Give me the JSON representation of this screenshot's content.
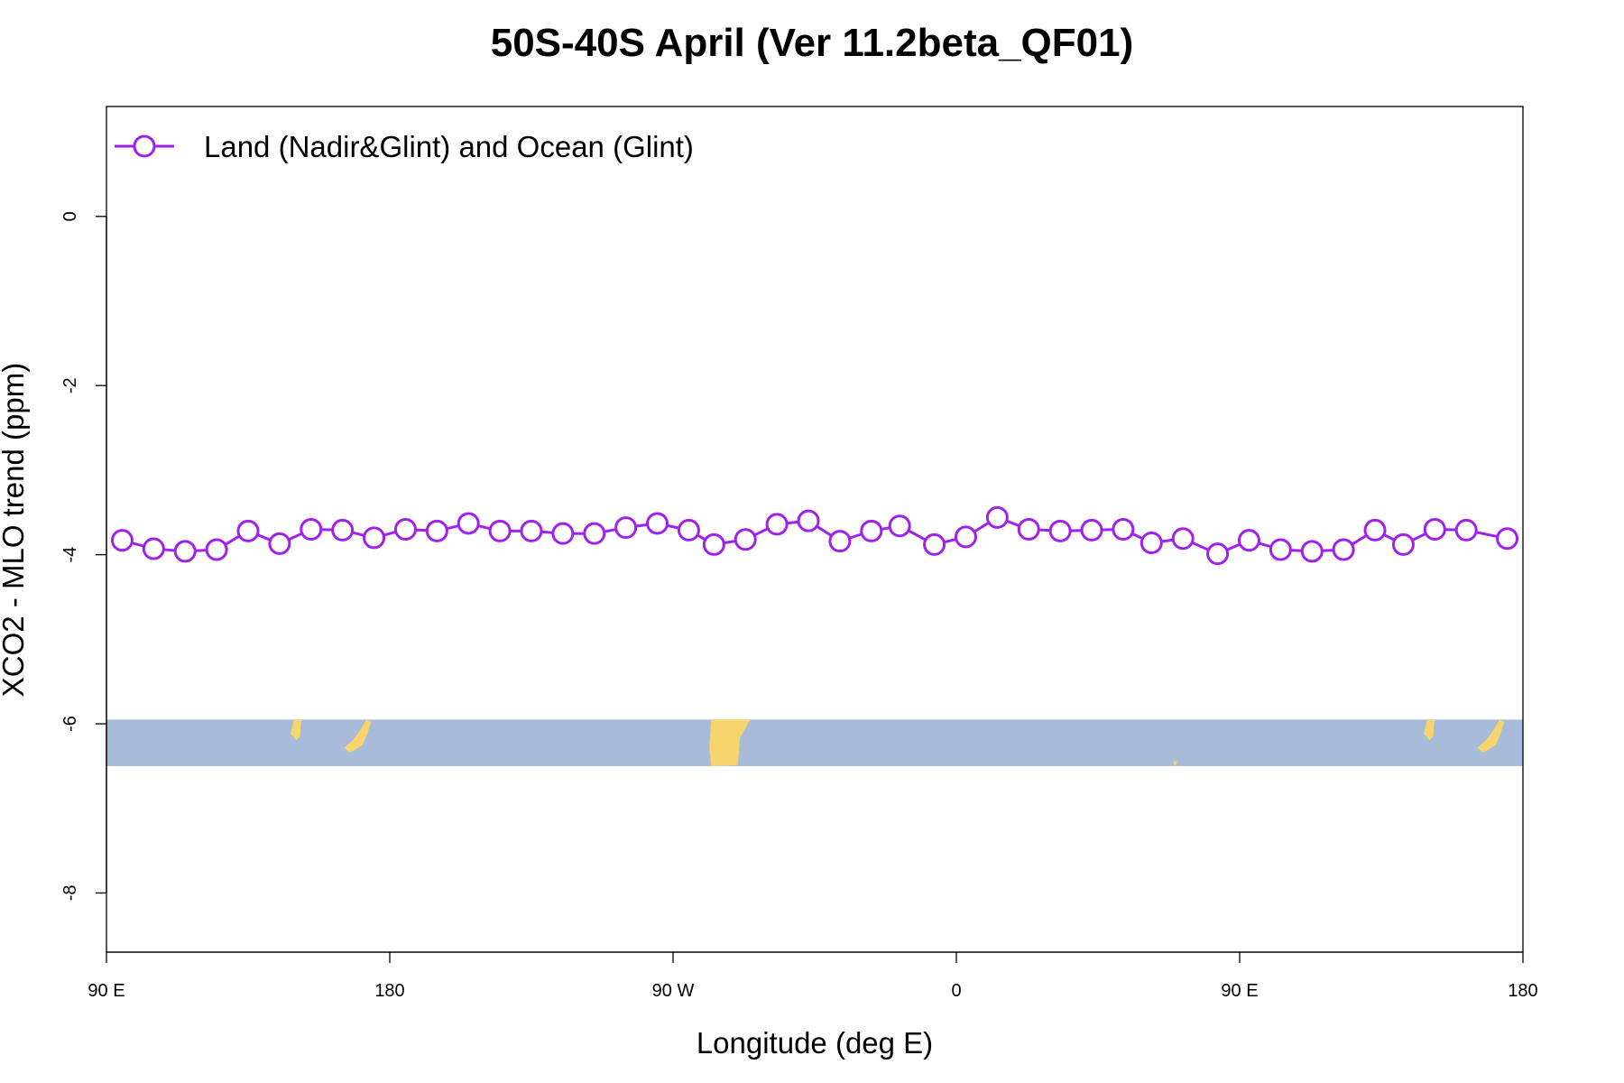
{
  "chart_data": {
    "type": "line",
    "title": "50S-40S April (Ver 11.2beta_QF01)",
    "xlabel": "Longitude (deg E)",
    "ylabel": "XCO2 - MLO trend (ppm)",
    "xlim": [
      90,
      540
    ],
    "ylim": [
      -8.7,
      1.3
    ],
    "x_ticks": [
      {
        "value": 90,
        "label": "90 E"
      },
      {
        "value": 180,
        "label": "180"
      },
      {
        "value": 270,
        "label": "90 W"
      },
      {
        "value": 360,
        "label": "0"
      },
      {
        "value": 450,
        "label": "90 E"
      },
      {
        "value": 540,
        "label": "180"
      }
    ],
    "y_ticks": [
      {
        "value": 0,
        "label": "0"
      },
      {
        "value": -2,
        "label": "-2"
      },
      {
        "value": -4,
        "label": "-4"
      },
      {
        "value": -6,
        "label": "-6"
      },
      {
        "value": -8,
        "label": "-8"
      }
    ],
    "grid": false,
    "legend_position": "top-left",
    "map_strip": {
      "ymin": -6.5,
      "ymax": -5.95,
      "ocean_color": "#a7bcd9",
      "land_color": "#f8d46e"
    },
    "series": [
      {
        "name": "Land (Nadir&Glint) and Ocean (Glint)",
        "color": "#a020f0",
        "marker": "open-circle",
        "x": [
          95,
          105,
          115,
          125,
          135,
          145,
          155,
          165,
          175,
          185,
          195,
          205,
          215,
          225,
          235,
          245,
          255,
          265,
          275,
          283,
          293,
          303,
          313,
          323,
          333,
          342,
          353,
          363,
          373,
          383,
          393,
          403,
          413,
          422,
          432,
          443,
          453,
          463,
          473,
          483,
          493,
          502,
          512,
          522,
          535
        ],
        "y": [
          -3.83,
          -3.93,
          -3.96,
          -3.94,
          -3.72,
          -3.87,
          -3.7,
          -3.71,
          -3.8,
          -3.7,
          -3.72,
          -3.63,
          -3.72,
          -3.72,
          -3.75,
          -3.75,
          -3.68,
          -3.63,
          -3.71,
          -3.88,
          -3.82,
          -3.64,
          -3.6,
          -3.84,
          -3.72,
          -3.66,
          -3.88,
          -3.79,
          -3.56,
          -3.7,
          -3.72,
          -3.71,
          -3.7,
          -3.86,
          -3.81,
          -3.99,
          -3.83,
          -3.94,
          -3.96,
          -3.94,
          -3.71,
          -3.88,
          -3.7,
          -3.71,
          -3.81
        ]
      }
    ]
  }
}
